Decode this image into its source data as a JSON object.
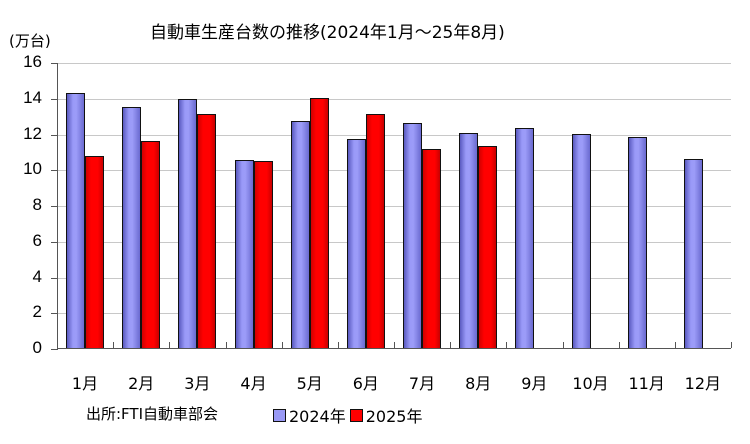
{
  "chart_data": {
    "type": "bar",
    "title": "自動車生産台数の推移(2024年1月～25年8月)",
    "xlabel": "",
    "ylabel": "(万台)",
    "ylim": [
      0,
      16
    ],
    "yticks": [
      "0",
      "2",
      "4",
      "6",
      "8",
      "10",
      "12",
      "14",
      "16"
    ],
    "grid": true,
    "legend_position": "bottom",
    "categories": [
      "1月",
      "2月",
      "3月",
      "4月",
      "5月",
      "6月",
      "7月",
      "8月",
      "9月",
      "10月",
      "11月",
      "12月"
    ],
    "series": [
      {
        "name": "2024年",
        "color": "#9999f5",
        "values": [
          14.22,
          13.4,
          13.85,
          10.47,
          12.62,
          11.62,
          12.51,
          11.98,
          12.24,
          11.92,
          11.74,
          10.51
        ]
      },
      {
        "name": "2025年",
        "color": "#ff0000",
        "values": [
          10.71,
          11.55,
          13.01,
          10.41,
          13.94,
          13.05,
          11.08,
          11.25,
          null,
          null,
          null,
          null
        ]
      }
    ],
    "source": "出所:FTI自動車部会"
  },
  "title": "自動車生産台数の推移(2024年1月～25年8月)",
  "unit_label": "(万台)",
  "source_label": "出所:FTI自動車部会",
  "legend": [
    {
      "label": "2024年",
      "color": "#9999f5"
    },
    {
      "label": "2025年",
      "color": "#ff0000"
    }
  ]
}
